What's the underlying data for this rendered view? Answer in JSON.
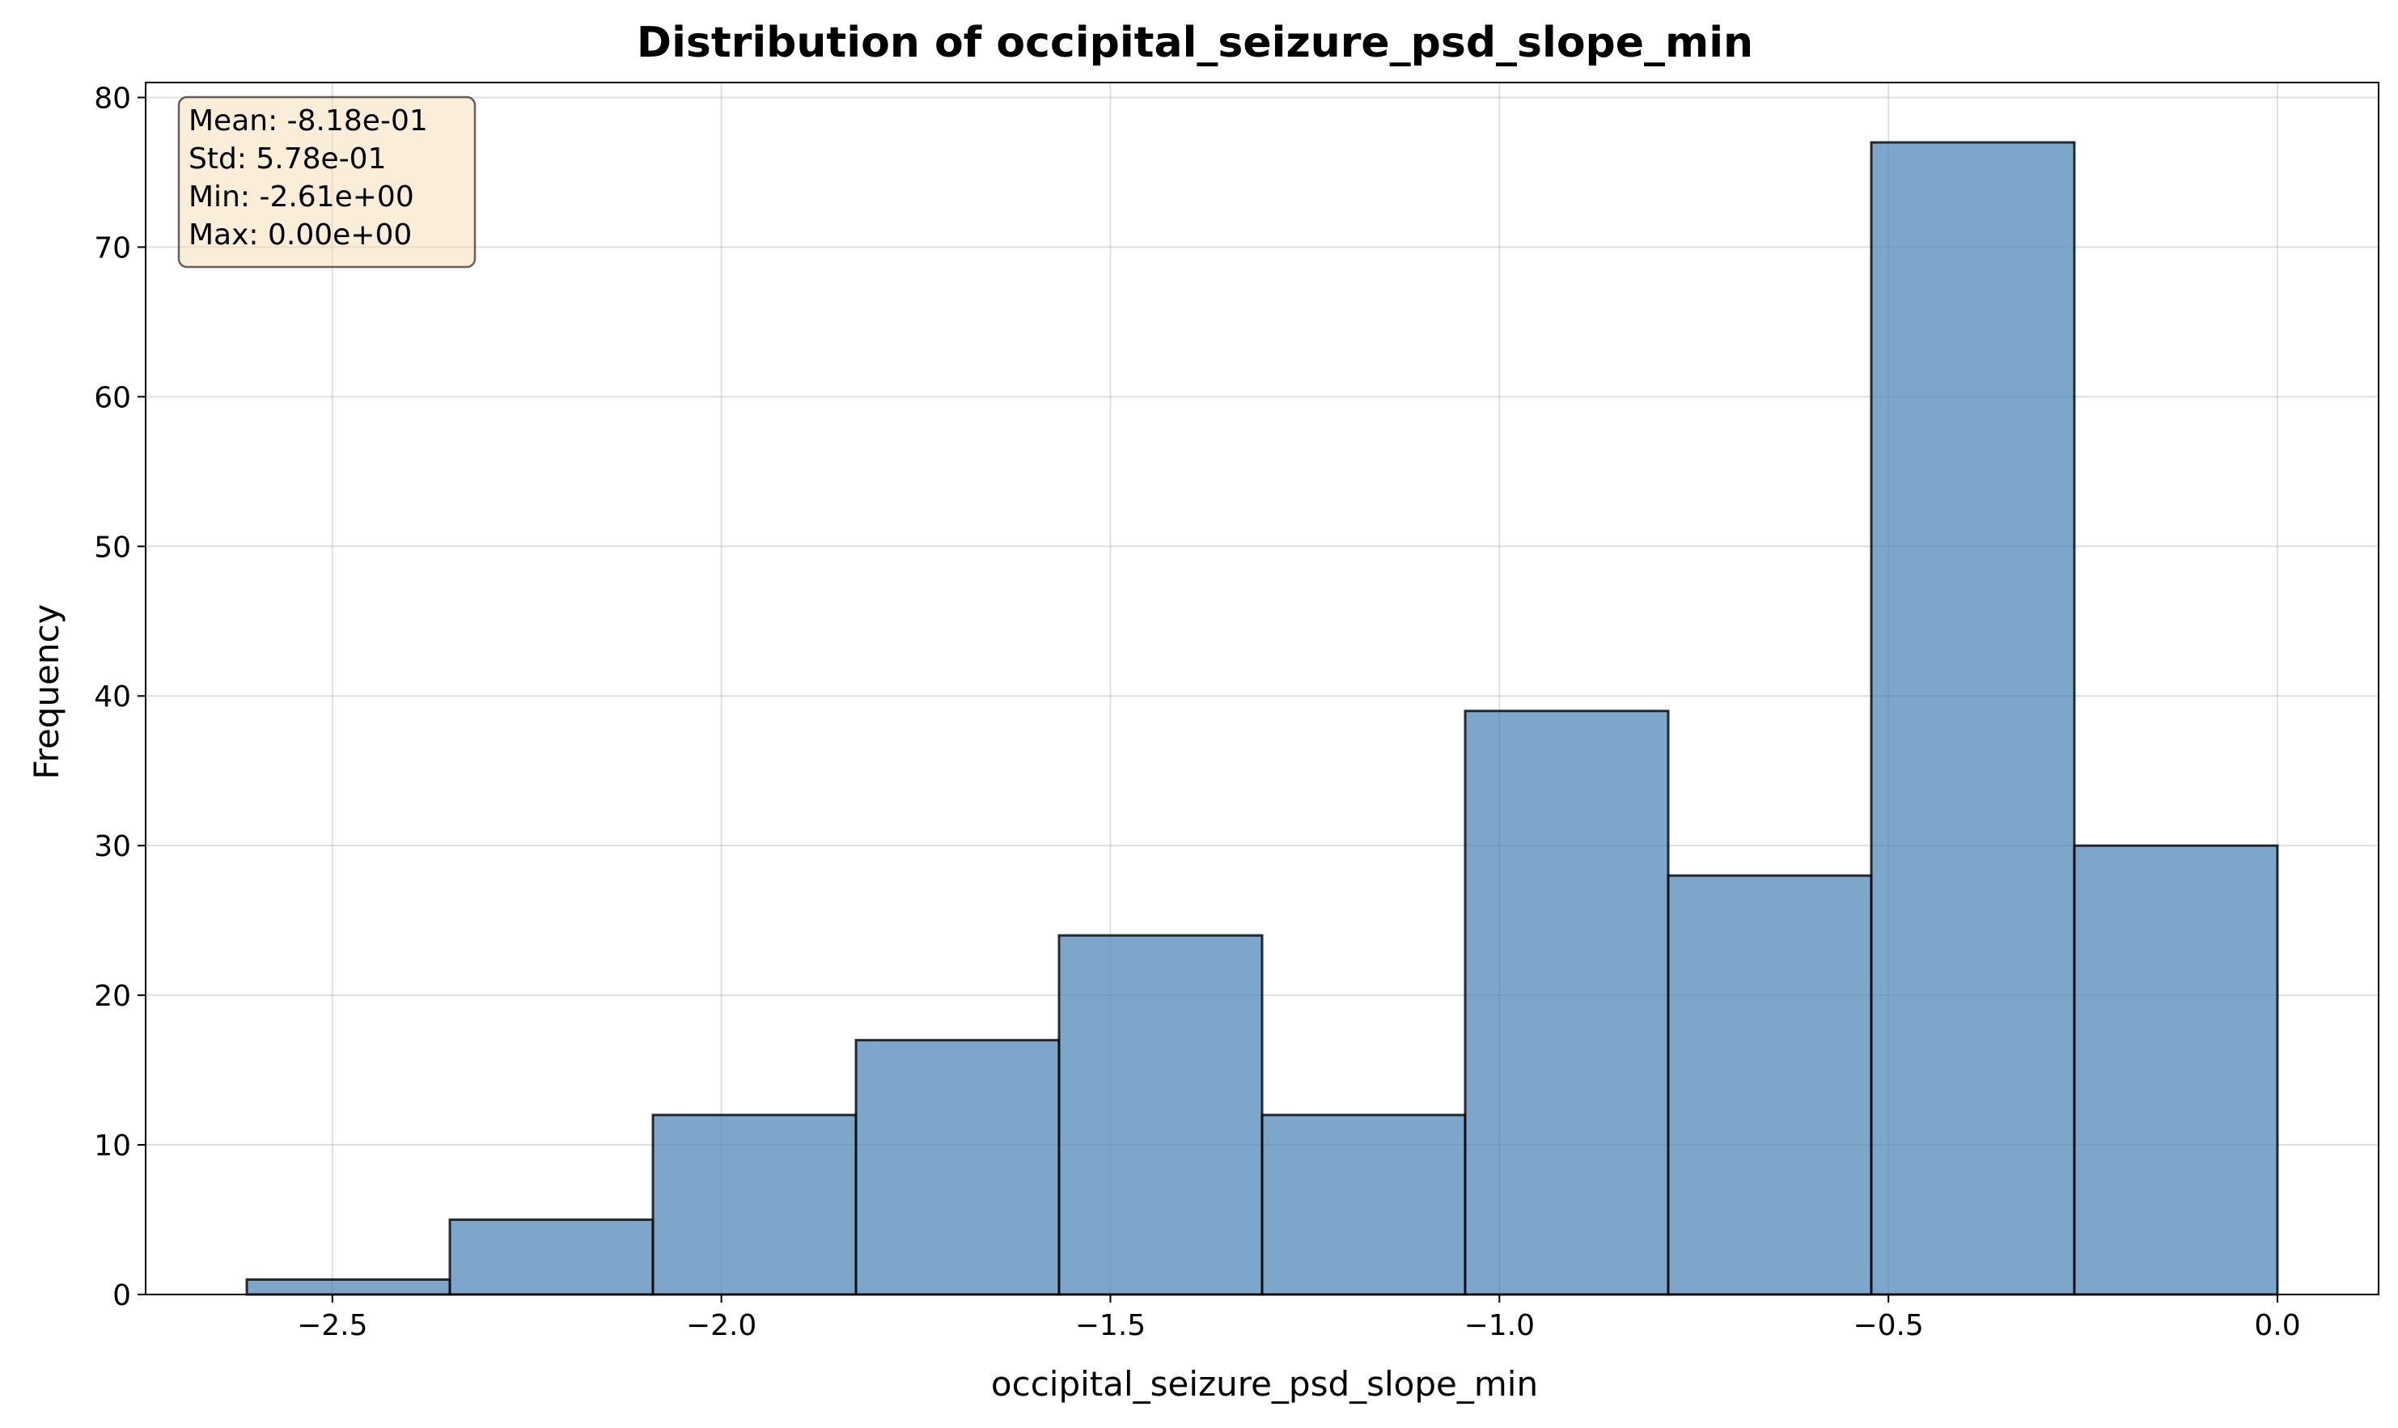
{
  "colors": {
    "bar_fill": "#4682b4",
    "bar_edge": "#000000",
    "grid": "#b0b0b0",
    "stats_box_fill": "#f5deb3",
    "stats_box_edge": "#000000"
  },
  "chart_data": {
    "type": "bar",
    "title": "Distribution of occipital_seizure_psd_slope_min",
    "xlabel": "occipital_seizure_psd_slope_min",
    "ylabel": "Frequency",
    "xlim": [
      -2.74,
      0.13
    ],
    "ylim": [
      0,
      81
    ],
    "grid": true,
    "bins": [
      {
        "x0": -2.61,
        "x1": -2.349,
        "count": 1
      },
      {
        "x0": -2.349,
        "x1": -2.088,
        "count": 5
      },
      {
        "x0": -2.088,
        "x1": -1.827,
        "count": 12
      },
      {
        "x0": -1.827,
        "x1": -1.566,
        "count": 17
      },
      {
        "x0": -1.566,
        "x1": -1.305,
        "count": 24
      },
      {
        "x0": -1.305,
        "x1": -1.044,
        "count": 12
      },
      {
        "x0": -1.044,
        "x1": -0.783,
        "count": 39
      },
      {
        "x0": -0.783,
        "x1": -0.522,
        "count": 28
      },
      {
        "x0": -0.522,
        "x1": -0.261,
        "count": 77
      },
      {
        "x0": -0.261,
        "x1": 0.0,
        "count": 30
      }
    ],
    "x_ticks": [
      {
        "value": -2.5,
        "label": "−2.5"
      },
      {
        "value": -2.0,
        "label": "−2.0"
      },
      {
        "value": -1.5,
        "label": "−1.5"
      },
      {
        "value": -1.0,
        "label": "−1.0"
      },
      {
        "value": -0.5,
        "label": "−0.5"
      },
      {
        "value": 0.0,
        "label": "0.0"
      }
    ],
    "y_ticks": [
      {
        "value": 0,
        "label": "0"
      },
      {
        "value": 10,
        "label": "10"
      },
      {
        "value": 20,
        "label": "20"
      },
      {
        "value": 30,
        "label": "30"
      },
      {
        "value": 40,
        "label": "40"
      },
      {
        "value": 50,
        "label": "50"
      },
      {
        "value": 60,
        "label": "60"
      },
      {
        "value": 70,
        "label": "70"
      },
      {
        "value": 80,
        "label": "80"
      }
    ],
    "stats_box": {
      "placement": "top-left",
      "lines": [
        "Mean: -8.18e-01",
        "Std: 5.78e-01",
        "Min: -2.61e+00",
        "Max: 0.00e+00"
      ]
    }
  }
}
